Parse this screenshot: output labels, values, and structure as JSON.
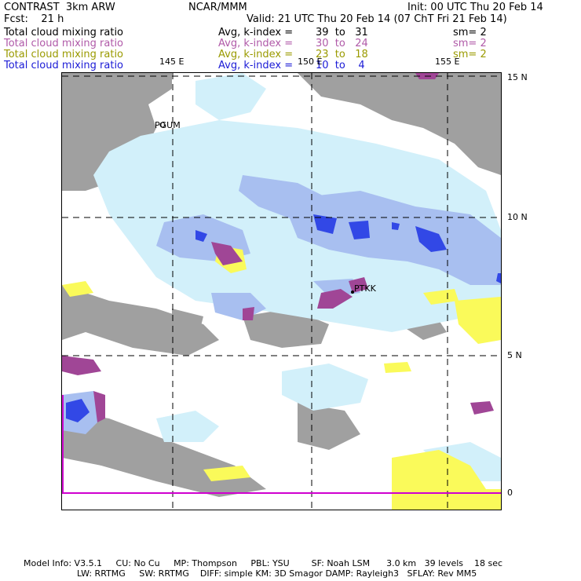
{
  "header": {
    "model": "CONTRAST  3km ARW",
    "org": "NCAR/MMM",
    "init": "Init: 00 UTC Thu 20 Feb 14",
    "fcst": "Fcst:    21 h",
    "valid": "Valid: 21 UTC Thu 20 Feb 14 (07 ChT Fri 21 Feb 14)"
  },
  "fields": [
    {
      "name": "Total cloud mixing ratio",
      "avg": "Avg, k-index =",
      "range": "39  to   31",
      "sm": "sm= 2",
      "color": "#000000"
    },
    {
      "name": "Total cloud mixing ratio",
      "avg": "Avg, k-index =",
      "range": "30  to   24",
      "sm": "sm= 2",
      "color": "#b05aa8"
    },
    {
      "name": "Total cloud mixing ratio",
      "avg": "Avg, k-index =",
      "range": "23  to   18",
      "sm": "sm= 2",
      "color": "#9a9a00"
    },
    {
      "name": "Total cloud mixing ratio",
      "avg": "Avg, k-index =",
      "range": "10  to    4",
      "sm": "",
      "color": "#1b1bd6"
    }
  ],
  "map": {
    "lon_labels": [
      "145 E",
      "150 E",
      "155 E"
    ],
    "lat_labels": [
      "15 N",
      "10 N",
      "5 N",
      "0"
    ],
    "stations": [
      "PGUM",
      "PTKK"
    ],
    "colors": {
      "gray": "#a0a0a0",
      "light_cyan": "#d2f0fa",
      "mid_blue": "#a8bff0",
      "deep_blue": "#3248e6",
      "yellow": "#fafa5a",
      "purple": "#a04696",
      "boundary": "#d000d0"
    }
  },
  "footer": {
    "line1": "Model Info: V3.5.1     CU: No Cu     MP: Thompson     PBL: YSU        SF: Noah LSM      3.0 km   39 levels    18 sec",
    "line2": "LW: RRTMG     SW: RRTMG    DIFF: simple KM: 3D Smagor DAMP: Rayleigh3   SFLAY: Rev MM5"
  }
}
